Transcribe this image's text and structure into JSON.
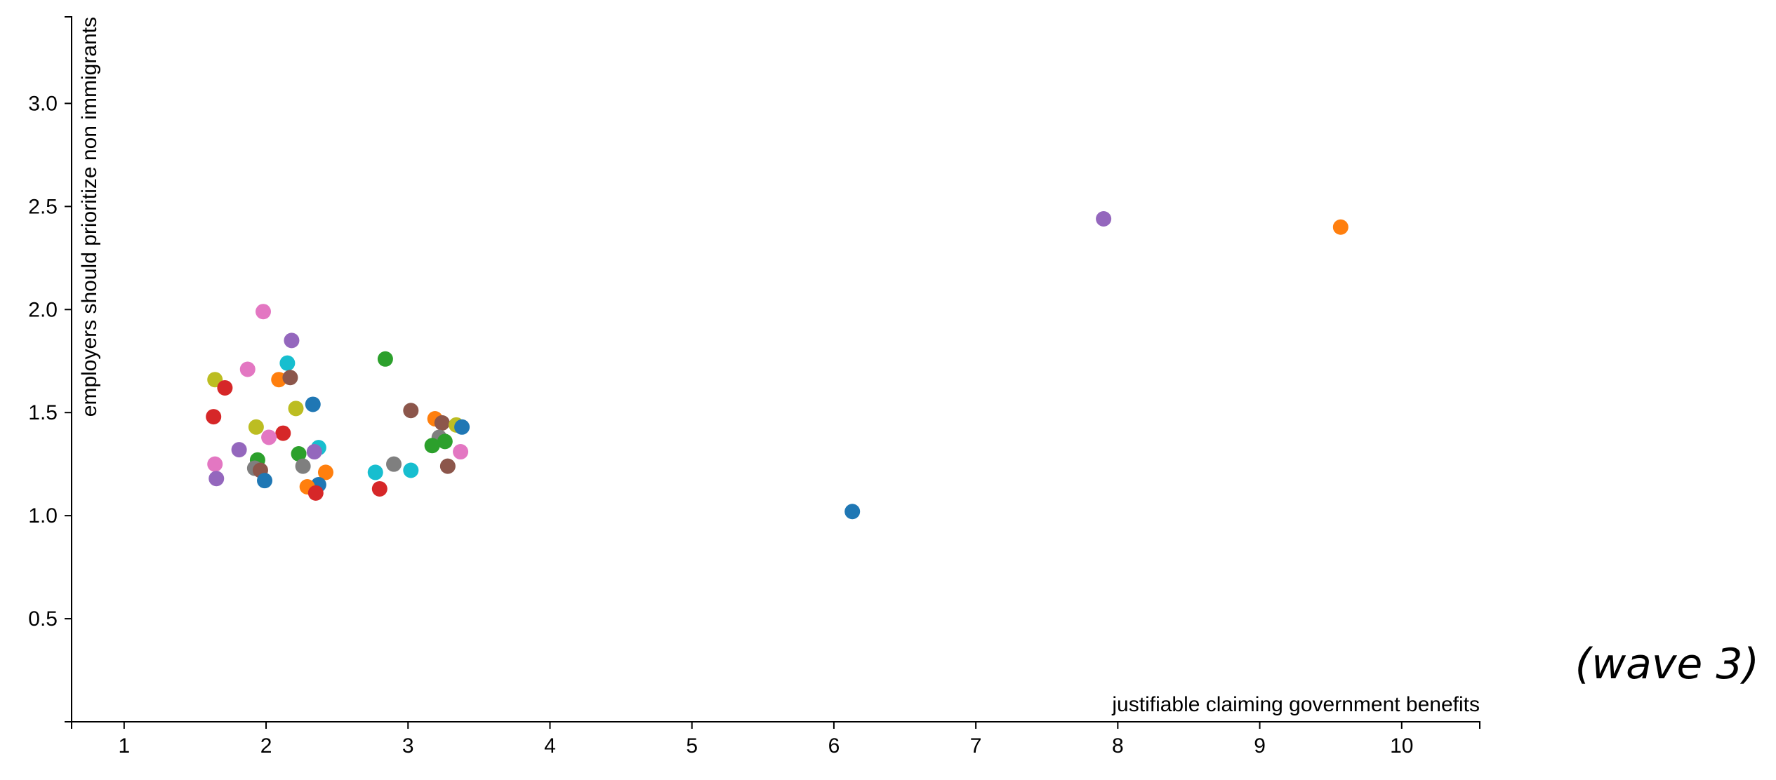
{
  "chart_data": {
    "type": "scatter",
    "title": "",
    "xlabel": "justifiable claiming government benefits",
    "ylabel": "employers should prioritize non immigrants",
    "annotation": "(wave 3)",
    "xlim": [
      0.63,
      10.55
    ],
    "ylim": [
      0.0,
      3.42
    ],
    "x_ticks": [
      1,
      2,
      3,
      4,
      5,
      6,
      7,
      8,
      9,
      10
    ],
    "y_ticks": [
      0.5,
      1.0,
      1.5,
      2.0,
      2.5,
      3.0
    ],
    "y_tick_labels": [
      "0.5",
      "1.0",
      "1.5",
      "2.0",
      "2.5",
      "3.0"
    ],
    "grid": false,
    "legend": "none",
    "palette": [
      "#1f77b4",
      "#ff7f0e",
      "#2ca02c",
      "#d62728",
      "#9467bd",
      "#8c564b",
      "#e377c2",
      "#7f7f7f",
      "#bcbd22",
      "#17becf"
    ],
    "points": [
      {
        "x": 1.98,
        "y": 1.99,
        "color": "#e377c2"
      },
      {
        "x": 2.18,
        "y": 1.85,
        "color": "#9467bd"
      },
      {
        "x": 2.84,
        "y": 1.76,
        "color": "#2ca02c"
      },
      {
        "x": 2.15,
        "y": 1.74,
        "color": "#17becf"
      },
      {
        "x": 1.87,
        "y": 1.71,
        "color": "#e377c2"
      },
      {
        "x": 2.09,
        "y": 1.66,
        "color": "#ff7f0e"
      },
      {
        "x": 2.17,
        "y": 1.67,
        "color": "#8c564b"
      },
      {
        "x": 1.64,
        "y": 1.66,
        "color": "#bcbd22"
      },
      {
        "x": 1.71,
        "y": 1.62,
        "color": "#d62728"
      },
      {
        "x": 2.33,
        "y": 1.54,
        "color": "#1f77b4"
      },
      {
        "x": 2.21,
        "y": 1.52,
        "color": "#bcbd22"
      },
      {
        "x": 3.02,
        "y": 1.51,
        "color": "#8c564b"
      },
      {
        "x": 1.63,
        "y": 1.48,
        "color": "#d62728"
      },
      {
        "x": 3.19,
        "y": 1.47,
        "color": "#ff7f0e"
      },
      {
        "x": 3.24,
        "y": 1.45,
        "color": "#8c564b"
      },
      {
        "x": 3.34,
        "y": 1.44,
        "color": "#bcbd22"
      },
      {
        "x": 3.38,
        "y": 1.43,
        "color": "#1f77b4"
      },
      {
        "x": 1.93,
        "y": 1.43,
        "color": "#bcbd22"
      },
      {
        "x": 2.12,
        "y": 1.4,
        "color": "#d62728"
      },
      {
        "x": 3.22,
        "y": 1.38,
        "color": "#7f7f7f"
      },
      {
        "x": 2.02,
        "y": 1.38,
        "color": "#e377c2"
      },
      {
        "x": 3.26,
        "y": 1.36,
        "color": "#2ca02c"
      },
      {
        "x": 3.17,
        "y": 1.34,
        "color": "#2ca02c"
      },
      {
        "x": 1.81,
        "y": 1.32,
        "color": "#9467bd"
      },
      {
        "x": 2.37,
        "y": 1.33,
        "color": "#17becf"
      },
      {
        "x": 2.34,
        "y": 1.31,
        "color": "#9467bd"
      },
      {
        "x": 3.37,
        "y": 1.31,
        "color": "#e377c2"
      },
      {
        "x": 2.23,
        "y": 1.3,
        "color": "#2ca02c"
      },
      {
        "x": 1.94,
        "y": 1.27,
        "color": "#2ca02c"
      },
      {
        "x": 2.9,
        "y": 1.25,
        "color": "#7f7f7f"
      },
      {
        "x": 1.64,
        "y": 1.25,
        "color": "#e377c2"
      },
      {
        "x": 2.26,
        "y": 1.24,
        "color": "#7f7f7f"
      },
      {
        "x": 3.28,
        "y": 1.24,
        "color": "#8c564b"
      },
      {
        "x": 1.92,
        "y": 1.23,
        "color": "#7f7f7f"
      },
      {
        "x": 3.02,
        "y": 1.22,
        "color": "#17becf"
      },
      {
        "x": 1.96,
        "y": 1.22,
        "color": "#8c564b"
      },
      {
        "x": 2.77,
        "y": 1.21,
        "color": "#17becf"
      },
      {
        "x": 2.42,
        "y": 1.21,
        "color": "#ff7f0e"
      },
      {
        "x": 1.65,
        "y": 1.18,
        "color": "#9467bd"
      },
      {
        "x": 1.99,
        "y": 1.17,
        "color": "#1f77b4"
      },
      {
        "x": 2.37,
        "y": 1.15,
        "color": "#1f77b4"
      },
      {
        "x": 2.29,
        "y": 1.14,
        "color": "#ff7f0e"
      },
      {
        "x": 2.8,
        "y": 1.13,
        "color": "#d62728"
      },
      {
        "x": 2.35,
        "y": 1.11,
        "color": "#d62728"
      },
      {
        "x": 7.9,
        "y": 2.44,
        "color": "#9467bd"
      },
      {
        "x": 9.57,
        "y": 2.4,
        "color": "#ff7f0e"
      },
      {
        "x": 6.13,
        "y": 1.02,
        "color": "#1f77b4"
      }
    ]
  }
}
